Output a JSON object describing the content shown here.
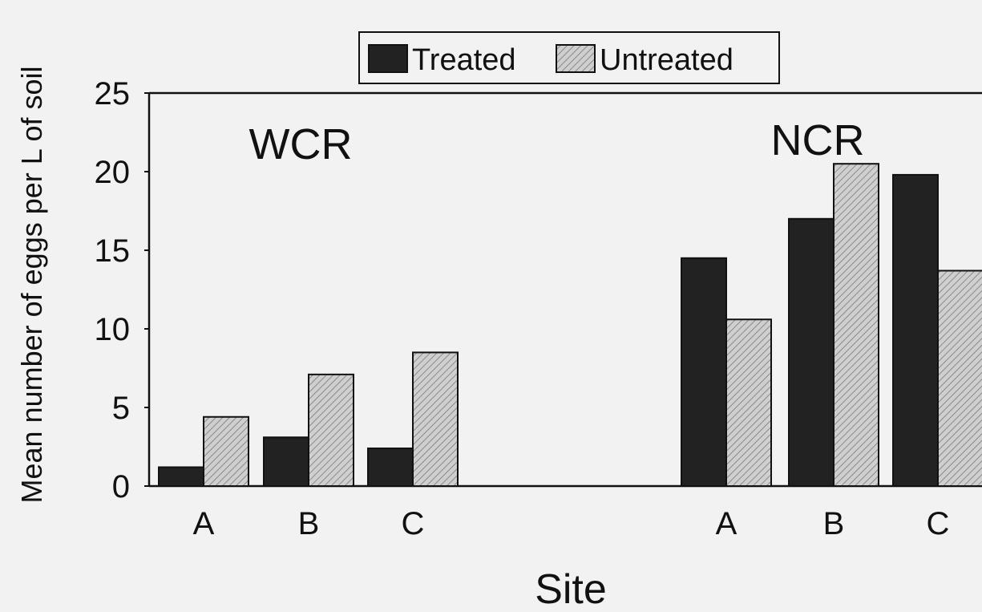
{
  "chart_data": {
    "type": "bar",
    "ylabel": "Mean number of eggs per L of soil",
    "xlabel": "Site",
    "ylim": [
      0,
      25
    ],
    "yticks": [
      "0",
      "5",
      "10",
      "15",
      "20",
      "25"
    ],
    "legend": {
      "placement": "top",
      "entries": [
        "Treated",
        "Untreated"
      ]
    },
    "colors": {
      "Treated": "#222222",
      "Untreated": "#bdbdbd"
    },
    "grid": false,
    "groups": [
      {
        "label": "WCR",
        "categories": [
          "A",
          "B",
          "C"
        ],
        "series": [
          {
            "name": "Treated",
            "values": [
              1.2,
              3.1,
              2.4
            ]
          },
          {
            "name": "Untreated",
            "values": [
              4.4,
              7.1,
              8.5
            ]
          }
        ]
      },
      {
        "label": "NCR",
        "categories": [
          "A",
          "B",
          "C"
        ],
        "series": [
          {
            "name": "Treated",
            "values": [
              14.5,
              17.0,
              19.8
            ]
          },
          {
            "name": "Untreated",
            "values": [
              10.6,
              20.5,
              13.7
            ]
          }
        ]
      }
    ]
  }
}
